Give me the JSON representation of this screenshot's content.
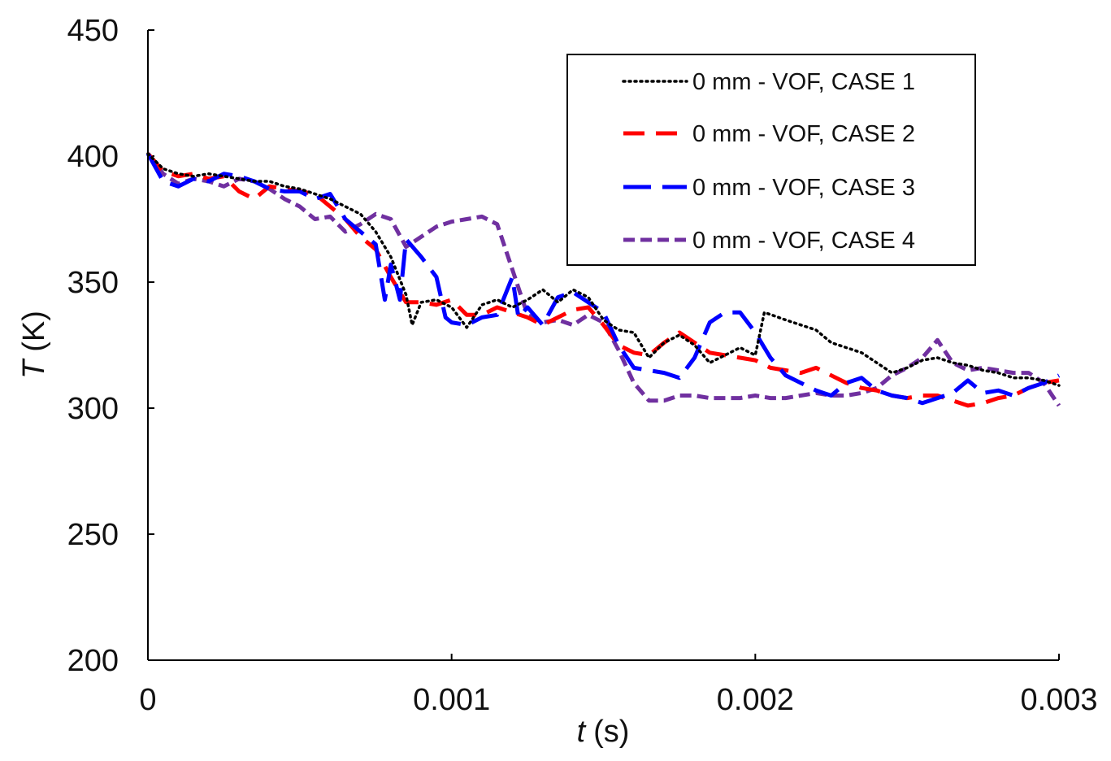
{
  "chart_data": {
    "type": "line",
    "title": "",
    "xlabel": {
      "var": "t",
      "unit": "(s)"
    },
    "ylabel": {
      "var": "T",
      "unit": "(K)"
    },
    "xlim": [
      0,
      0.003
    ],
    "ylim": [
      200,
      450
    ],
    "xticks": [
      0,
      0.001,
      0.002,
      0.003
    ],
    "xtick_labels": [
      "0",
      "0.001",
      "0.002",
      "0.003"
    ],
    "yticks": [
      200,
      250,
      300,
      350,
      400,
      450
    ],
    "ytick_labels": [
      "200",
      "250",
      "300",
      "350",
      "400",
      "450"
    ],
    "legend_position": "top-right",
    "series": [
      {
        "name": "0 mm - VOF, CASE 1",
        "color": "#000000",
        "style": "dotted",
        "points": [
          [
            0,
            401
          ],
          [
            5e-05,
            395
          ],
          [
            0.0001,
            393
          ],
          [
            0.00015,
            392
          ],
          [
            0.0002,
            393
          ],
          [
            0.00025,
            392
          ],
          [
            0.0003,
            391
          ],
          [
            0.00035,
            390
          ],
          [
            0.0004,
            390
          ],
          [
            0.00045,
            388
          ],
          [
            0.0005,
            387
          ],
          [
            0.00055,
            385
          ],
          [
            0.0006,
            383
          ],
          [
            0.00065,
            380
          ],
          [
            0.0007,
            377
          ],
          [
            0.00075,
            370
          ],
          [
            0.0008,
            360
          ],
          [
            0.00085,
            345
          ],
          [
            0.00087,
            333
          ],
          [
            0.0009,
            342
          ],
          [
            0.00095,
            343
          ],
          [
            0.001,
            340
          ],
          [
            0.00105,
            332
          ],
          [
            0.0011,
            341
          ],
          [
            0.00115,
            343
          ],
          [
            0.0012,
            340
          ],
          [
            0.00125,
            343
          ],
          [
            0.0013,
            347
          ],
          [
            0.00135,
            342
          ],
          [
            0.0014,
            347
          ],
          [
            0.00145,
            344
          ],
          [
            0.0015,
            335
          ],
          [
            0.00155,
            331
          ],
          [
            0.0016,
            330
          ],
          [
            0.00165,
            320
          ],
          [
            0.0017,
            326
          ],
          [
            0.00175,
            329
          ],
          [
            0.0018,
            325
          ],
          [
            0.00185,
            318
          ],
          [
            0.0019,
            321
          ],
          [
            0.00195,
            324
          ],
          [
            0.002,
            321
          ],
          [
            0.00203,
            338
          ],
          [
            0.0021,
            335
          ],
          [
            0.00215,
            333
          ],
          [
            0.0022,
            331
          ],
          [
            0.00225,
            326
          ],
          [
            0.0023,
            324
          ],
          [
            0.00235,
            322
          ],
          [
            0.0024,
            318
          ],
          [
            0.00245,
            314
          ],
          [
            0.0025,
            316
          ],
          [
            0.00255,
            319
          ],
          [
            0.0026,
            320
          ],
          [
            0.00265,
            318
          ],
          [
            0.0027,
            317
          ],
          [
            0.00275,
            315
          ],
          [
            0.0028,
            314
          ],
          [
            0.00285,
            312
          ],
          [
            0.0029,
            312
          ],
          [
            0.00295,
            311
          ],
          [
            0.003,
            309
          ]
        ]
      },
      {
        "name": "0 mm - VOF, CASE 2",
        "color": "#ff0000",
        "style": "dashed",
        "points": [
          [
            0,
            401
          ],
          [
            5e-05,
            394
          ],
          [
            0.0001,
            392
          ],
          [
            0.00015,
            393
          ],
          [
            0.0002,
            391
          ],
          [
            0.00025,
            392
          ],
          [
            0.0003,
            386
          ],
          [
            0.00035,
            383
          ],
          [
            0.0004,
            388
          ],
          [
            0.00045,
            387
          ],
          [
            0.0005,
            386
          ],
          [
            0.00055,
            385
          ],
          [
            0.0006,
            380
          ],
          [
            0.00065,
            375
          ],
          [
            0.0007,
            368
          ],
          [
            0.00075,
            363
          ],
          [
            0.0008,
            352
          ],
          [
            0.00085,
            342
          ],
          [
            0.0009,
            342
          ],
          [
            0.00095,
            341
          ],
          [
            0.001,
            343
          ],
          [
            0.00105,
            337
          ],
          [
            0.0011,
            337
          ],
          [
            0.00115,
            340
          ],
          [
            0.0012,
            338
          ],
          [
            0.00125,
            336
          ],
          [
            0.0013,
            333
          ],
          [
            0.00135,
            336
          ],
          [
            0.0014,
            339
          ],
          [
            0.00145,
            340
          ],
          [
            0.0015,
            333
          ],
          [
            0.00155,
            325
          ],
          [
            0.0016,
            322
          ],
          [
            0.00165,
            321
          ],
          [
            0.0017,
            326
          ],
          [
            0.00175,
            330
          ],
          [
            0.0018,
            326
          ],
          [
            0.00185,
            322
          ],
          [
            0.0019,
            321
          ],
          [
            0.00195,
            320
          ],
          [
            0.002,
            319
          ],
          [
            0.00205,
            316
          ],
          [
            0.0021,
            315
          ],
          [
            0.00215,
            314
          ],
          [
            0.0022,
            316
          ],
          [
            0.00225,
            313
          ],
          [
            0.0023,
            310
          ],
          [
            0.00235,
            308
          ],
          [
            0.0024,
            307
          ],
          [
            0.00245,
            305
          ],
          [
            0.0025,
            304
          ],
          [
            0.00255,
            305
          ],
          [
            0.0026,
            305
          ],
          [
            0.00265,
            303
          ],
          [
            0.0027,
            301
          ],
          [
            0.00275,
            302
          ],
          [
            0.0028,
            304
          ],
          [
            0.00285,
            305
          ],
          [
            0.0029,
            308
          ],
          [
            0.00295,
            310
          ],
          [
            0.003,
            311
          ]
        ]
      },
      {
        "name": "0 mm - VOF, CASE 3",
        "color": "#0000ff",
        "style": "longdash",
        "points": [
          [
            0,
            401
          ],
          [
            5e-05,
            390
          ],
          [
            0.0001,
            388
          ],
          [
            0.00015,
            391
          ],
          [
            0.0002,
            390
          ],
          [
            0.00025,
            393
          ],
          [
            0.0003,
            392
          ],
          [
            0.00035,
            390
          ],
          [
            0.0004,
            387
          ],
          [
            0.00045,
            386
          ],
          [
            0.0005,
            386
          ],
          [
            0.00055,
            383
          ],
          [
            0.0006,
            385
          ],
          [
            0.00065,
            375
          ],
          [
            0.0007,
            370
          ],
          [
            0.00075,
            365
          ],
          [
            0.00078,
            343
          ],
          [
            0.0008,
            357
          ],
          [
            0.00083,
            343
          ],
          [
            0.00085,
            367
          ],
          [
            0.0009,
            360
          ],
          [
            0.00095,
            352
          ],
          [
            0.00098,
            336
          ],
          [
            0.001,
            334
          ],
          [
            0.00105,
            333
          ],
          [
            0.0011,
            336
          ],
          [
            0.00115,
            337
          ],
          [
            0.0012,
            352
          ],
          [
            0.00122,
            336
          ],
          [
            0.00125,
            340
          ],
          [
            0.0013,
            333
          ],
          [
            0.00135,
            344
          ],
          [
            0.0014,
            346
          ],
          [
            0.00145,
            342
          ],
          [
            0.0015,
            338
          ],
          [
            0.00155,
            325
          ],
          [
            0.0016,
            316
          ],
          [
            0.00165,
            315
          ],
          [
            0.0017,
            314
          ],
          [
            0.00175,
            312
          ],
          [
            0.0018,
            320
          ],
          [
            0.00185,
            334
          ],
          [
            0.0019,
            338
          ],
          [
            0.00195,
            338
          ],
          [
            0.002,
            330
          ],
          [
            0.00205,
            320
          ],
          [
            0.0021,
            313
          ],
          [
            0.00215,
            310
          ],
          [
            0.0022,
            307
          ],
          [
            0.00225,
            305
          ],
          [
            0.0023,
            310
          ],
          [
            0.00235,
            312
          ],
          [
            0.0024,
            307
          ],
          [
            0.00245,
            305
          ],
          [
            0.0025,
            304
          ],
          [
            0.00255,
            302
          ],
          [
            0.0026,
            304
          ],
          [
            0.00265,
            306
          ],
          [
            0.0027,
            311
          ],
          [
            0.00275,
            306
          ],
          [
            0.0028,
            307
          ],
          [
            0.00285,
            305
          ],
          [
            0.0029,
            308
          ],
          [
            0.00295,
            310
          ],
          [
            0.003,
            313
          ]
        ]
      },
      {
        "name": "0 mm - VOF, CASE 4",
        "color": "#7030a0",
        "style": "shortdash",
        "points": [
          [
            0,
            401
          ],
          [
            5e-05,
            393
          ],
          [
            0.0001,
            389
          ],
          [
            0.00015,
            391
          ],
          [
            0.0002,
            390
          ],
          [
            0.00025,
            388
          ],
          [
            0.0003,
            391
          ],
          [
            0.00035,
            390
          ],
          [
            0.0004,
            387
          ],
          [
            0.00045,
            383
          ],
          [
            0.0005,
            380
          ],
          [
            0.00055,
            375
          ],
          [
            0.0006,
            376
          ],
          [
            0.00065,
            370
          ],
          [
            0.0007,
            373
          ],
          [
            0.00075,
            377
          ],
          [
            0.0008,
            375
          ],
          [
            0.00085,
            364
          ],
          [
            0.0009,
            368
          ],
          [
            0.00095,
            372
          ],
          [
            0.001,
            374
          ],
          [
            0.00105,
            375
          ],
          [
            0.0011,
            376
          ],
          [
            0.00115,
            373
          ],
          [
            0.0012,
            355
          ],
          [
            0.00125,
            337
          ],
          [
            0.0013,
            334
          ],
          [
            0.00135,
            335
          ],
          [
            0.0014,
            333
          ],
          [
            0.00145,
            337
          ],
          [
            0.0015,
            334
          ],
          [
            0.00155,
            323
          ],
          [
            0.0016,
            310
          ],
          [
            0.00165,
            303
          ],
          [
            0.0017,
            303
          ],
          [
            0.00175,
            305
          ],
          [
            0.0018,
            305
          ],
          [
            0.00185,
            304
          ],
          [
            0.0019,
            304
          ],
          [
            0.00195,
            304
          ],
          [
            0.002,
            305
          ],
          [
            0.00205,
            304
          ],
          [
            0.0021,
            304
          ],
          [
            0.00215,
            305
          ],
          [
            0.0022,
            306
          ],
          [
            0.00225,
            305
          ],
          [
            0.0023,
            305
          ],
          [
            0.00235,
            306
          ],
          [
            0.0024,
            308
          ],
          [
            0.00245,
            313
          ],
          [
            0.0025,
            316
          ],
          [
            0.00255,
            320
          ],
          [
            0.0026,
            327
          ],
          [
            0.00265,
            318
          ],
          [
            0.0027,
            315
          ],
          [
            0.00275,
            316
          ],
          [
            0.0028,
            315
          ],
          [
            0.00285,
            314
          ],
          [
            0.0029,
            314
          ],
          [
            0.00295,
            310
          ],
          [
            0.003,
            301
          ]
        ]
      }
    ]
  }
}
